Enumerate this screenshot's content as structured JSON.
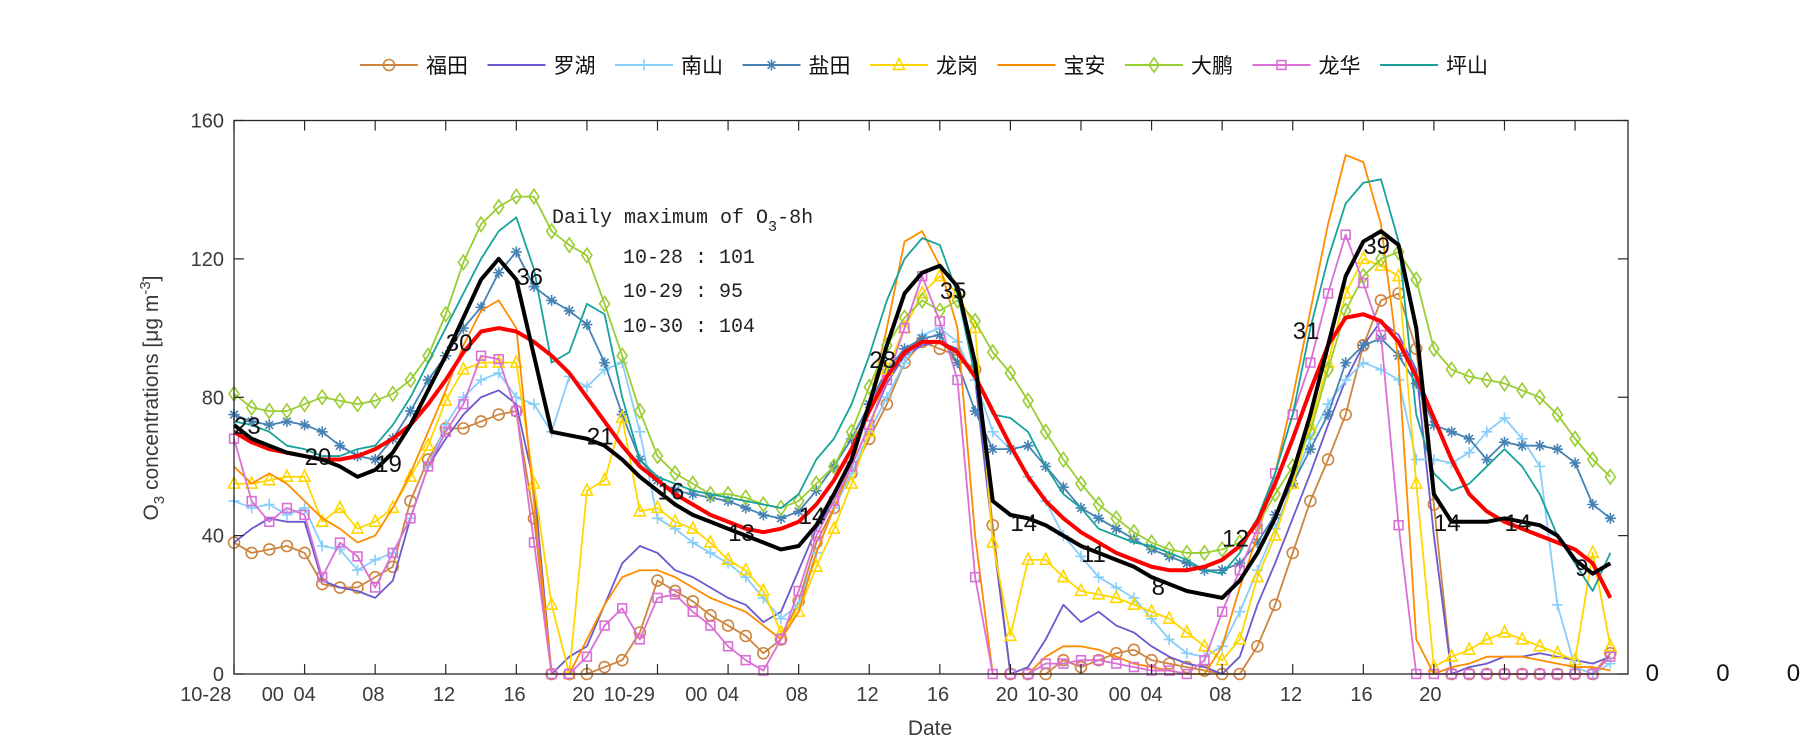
{
  "chart_data": {
    "type": "line",
    "title": "",
    "xlabel": "Date",
    "ylabel": {
      "main": "O",
      "sub": "3",
      "rest": " concentrations [μg m",
      "sup": "-3",
      "end": "]"
    },
    "xlim": [
      0,
      79
    ],
    "ylim": [
      0,
      160
    ],
    "grid": false,
    "legend_position": "top",
    "yticks": [
      0,
      40,
      80,
      120,
      160
    ],
    "xticks": [
      0,
      4,
      8,
      12,
      16,
      20,
      24,
      28,
      32,
      36,
      40,
      44,
      48,
      52,
      56,
      60,
      64,
      68,
      72,
      76
    ],
    "xtick_labels": [
      {
        "text": "10-28",
        "x": -1.6
      },
      {
        "text": "00",
        "x": 2.2
      },
      {
        "text": "04",
        "x": 4
      },
      {
        "text": "08",
        "x": 7.9
      },
      {
        "text": "12",
        "x": 11.9
      },
      {
        "text": "16",
        "x": 15.9
      },
      {
        "text": "20",
        "x": 19.8
      },
      {
        "text": "10-29",
        "x": 22.4
      },
      {
        "text": "00",
        "x": 26.2
      },
      {
        "text": "04",
        "x": 28
      },
      {
        "text": "08",
        "x": 31.9
      },
      {
        "text": "12",
        "x": 35.9
      },
      {
        "text": "16",
        "x": 39.9
      },
      {
        "text": "20",
        "x": 43.8
      },
      {
        "text": "10-30",
        "x": 46.4
      },
      {
        "text": "00",
        "x": 50.2
      },
      {
        "text": "04",
        "x": 52
      },
      {
        "text": "08",
        "x": 55.9
      },
      {
        "text": "12",
        "x": 59.9
      },
      {
        "text": "16",
        "x": 63.9
      },
      {
        "text": "20",
        "x": 67.8
      }
    ],
    "series": [
      {
        "name": "福田",
        "color": "#cd853f",
        "marker": "circle",
        "values": [
          38,
          35,
          36,
          37,
          35,
          26,
          25,
          25,
          28,
          31,
          50,
          62,
          71,
          71,
          73,
          75,
          76,
          45,
          0,
          0,
          0,
          2,
          4,
          12,
          27,
          24,
          21,
          17,
          14,
          11,
          6,
          10,
          21,
          38,
          48,
          58,
          68,
          78,
          90,
          96,
          94,
          92,
          88,
          43,
          0,
          0,
          0,
          4,
          2,
          4,
          6,
          7,
          4,
          3,
          2,
          1,
          0,
          0,
          8,
          20,
          35,
          50,
          62,
          75,
          95,
          108,
          110,
          94,
          49,
          0,
          0,
          0,
          0,
          0,
          0,
          0,
          0,
          0,
          6
        ]
      },
      {
        "name": "罗湖",
        "color": "#6a5acd",
        "marker": "none",
        "values": [
          38,
          42,
          45,
          44,
          44,
          27,
          25,
          24,
          22,
          27,
          45,
          60,
          68,
          75,
          80,
          82,
          78,
          55,
          0,
          5,
          8,
          20,
          32,
          37,
          35,
          30,
          28,
          25,
          22,
          20,
          15,
          18,
          30,
          42,
          50,
          60,
          72,
          84,
          92,
          95,
          96,
          94,
          85,
          40,
          0,
          2,
          10,
          20,
          15,
          18,
          14,
          12,
          8,
          5,
          3,
          2,
          0,
          5,
          20,
          32,
          45,
          58,
          72,
          85,
          95,
          102,
          98,
          88,
          40,
          0,
          2,
          3,
          5,
          5,
          6,
          5,
          4,
          3,
          5
        ]
      },
      {
        "name": "南山",
        "color": "#87cefa",
        "marker": "plus",
        "values": [
          50,
          48,
          49,
          46,
          48,
          37,
          36,
          30,
          33,
          35,
          45,
          60,
          72,
          80,
          85,
          87,
          80,
          78,
          70,
          86,
          83,
          88,
          90,
          70,
          45,
          42,
          38,
          35,
          32,
          28,
          22,
          16,
          20,
          35,
          48,
          58,
          70,
          80,
          90,
          98,
          100,
          96,
          85,
          70,
          65,
          57,
          50,
          40,
          34,
          28,
          25,
          22,
          16,
          10,
          6,
          5,
          8,
          18,
          30,
          42,
          55,
          68,
          78,
          85,
          90,
          88,
          85,
          62,
          62,
          61,
          64,
          70,
          74,
          68,
          60,
          20,
          2,
          0,
          3
        ]
      },
      {
        "name": "盐田",
        "color": "#4682b4",
        "marker": "asterisk",
        "values": [
          75,
          73,
          72,
          73,
          72,
          70,
          66,
          63,
          62,
          68,
          76,
          85,
          92,
          100,
          106,
          116,
          122,
          112,
          108,
          105,
          101,
          90,
          75,
          62,
          56,
          53,
          52,
          51,
          50,
          48,
          46,
          45,
          47,
          53,
          60,
          68,
          78,
          88,
          94,
          97,
          98,
          90,
          76,
          65,
          65,
          66,
          60,
          54,
          48,
          45,
          42,
          39,
          36,
          34,
          32,
          30,
          30,
          32,
          38,
          46,
          55,
          65,
          75,
          90,
          95,
          97,
          92,
          84,
          72,
          70,
          68,
          62,
          67,
          66,
          66,
          65,
          61,
          49,
          45
        ]
      },
      {
        "name": "龙岗",
        "color": "#ffd700",
        "marker": "triangle",
        "values": [
          55,
          55,
          56,
          57,
          57,
          44,
          48,
          42,
          44,
          48,
          57,
          66,
          79,
          88,
          90,
          90,
          90,
          55,
          20,
          0,
          53,
          56,
          74,
          47,
          48,
          44,
          42,
          38,
          33,
          30,
          24,
          12,
          18,
          31,
          42,
          55,
          70,
          88,
          100,
          110,
          115,
          110,
          100,
          38,
          11,
          33,
          33,
          28,
          24,
          23,
          22,
          20,
          18,
          16,
          12,
          8,
          4,
          10,
          28,
          40,
          55,
          72,
          90,
          110,
          120,
          118,
          115,
          55,
          2,
          5,
          7,
          10,
          12,
          10,
          8,
          6,
          4,
          35,
          8
        ]
      },
      {
        "name": "宝安",
        "color": "#ff8c00",
        "marker": "none",
        "values": [
          60,
          55,
          58,
          55,
          50,
          45,
          42,
          38,
          40,
          48,
          58,
          70,
          82,
          95,
          105,
          108,
          100,
          50,
          0,
          0,
          10,
          20,
          28,
          30,
          30,
          28,
          25,
          22,
          20,
          18,
          14,
          10,
          18,
          35,
          48,
          60,
          78,
          100,
          125,
          128,
          118,
          100,
          40,
          0,
          0,
          0,
          5,
          8,
          8,
          7,
          5,
          3,
          2,
          1,
          0,
          0,
          8,
          25,
          40,
          58,
          80,
          105,
          130,
          150,
          148,
          130,
          90,
          10,
          0,
          2,
          3,
          5,
          5,
          5,
          4,
          3,
          2,
          2,
          1
        ]
      },
      {
        "name": "大鹏",
        "color": "#9acd32",
        "marker": "diamond",
        "values": [
          81,
          77,
          76,
          76,
          78,
          80,
          79,
          78,
          79,
          81,
          85,
          92,
          104,
          119,
          130,
          135,
          138,
          138,
          128,
          124,
          121,
          107,
          92,
          76,
          63,
          58,
          55,
          52,
          52,
          51,
          49,
          48,
          50,
          55,
          60,
          70,
          83,
          95,
          103,
          108,
          105,
          108,
          102,
          93,
          87,
          79,
          70,
          62,
          55,
          49,
          45,
          41,
          38,
          36,
          35,
          35,
          36,
          38,
          43,
          52,
          60,
          70,
          88,
          105,
          115,
          120,
          122,
          114,
          94,
          88,
          86,
          85,
          84,
          82,
          80,
          75,
          68,
          62,
          57
        ]
      },
      {
        "name": "龙华",
        "color": "#da70d6",
        "marker": "square",
        "values": [
          68,
          50,
          44,
          48,
          46,
          28,
          38,
          34,
          25,
          35,
          45,
          60,
          70,
          78,
          92,
          91,
          76,
          38,
          0,
          0,
          5,
          14,
          19,
          10,
          22,
          23,
          18,
          14,
          8,
          4,
          1,
          10,
          24,
          40,
          50,
          60,
          72,
          85,
          100,
          115,
          102,
          85,
          28,
          0,
          0,
          0,
          3,
          3,
          4,
          4,
          3,
          2,
          1,
          1,
          0,
          4,
          18,
          30,
          42,
          58,
          75,
          90,
          110,
          127,
          113,
          98,
          43,
          0,
          0,
          0,
          0,
          0,
          0,
          0,
          0,
          0,
          0,
          0,
          5
        ]
      },
      {
        "name": "坪山",
        "color": "#17a39b",
        "marker": "none",
        "values": [
          73,
          72,
          70,
          66,
          65,
          63,
          63,
          65,
          66,
          72,
          80,
          90,
          100,
          110,
          120,
          128,
          132,
          117,
          90,
          93,
          107,
          104,
          80,
          62,
          57,
          55,
          53,
          52,
          51,
          50,
          49,
          48,
          52,
          62,
          68,
          78,
          92,
          108,
          120,
          126,
          124,
          110,
          86,
          75,
          74,
          70,
          60,
          52,
          48,
          42,
          40,
          38,
          37,
          35,
          33,
          30,
          29,
          35,
          45,
          58,
          75,
          100,
          120,
          136,
          142,
          143,
          125,
          75,
          58,
          53,
          55,
          60,
          65,
          60,
          52,
          40,
          32,
          24,
          35
        ]
      }
    ],
    "overlay_lines": [
      {
        "color": "#ff0000",
        "values": [
          70,
          67,
          65,
          64,
          63,
          62,
          62,
          63,
          65,
          68,
          72,
          78,
          85,
          93,
          99,
          100,
          99,
          96,
          92,
          87,
          80,
          73,
          66,
          60,
          56,
          52,
          49,
          46,
          44,
          42,
          41,
          42,
          44,
          49,
          56,
          65,
          76,
          86,
          93,
          96,
          96,
          93,
          86,
          76,
          66,
          57,
          50,
          45,
          41,
          38,
          35,
          33,
          31,
          30,
          30,
          31,
          33,
          37,
          44,
          55,
          68,
          82,
          95,
          103,
          104,
          102,
          96,
          86,
          74,
          62,
          52,
          47,
          44,
          42,
          40,
          38,
          36,
          32,
          22
        ]
      },
      {
        "color": "#000000",
        "values": [
          72,
          68,
          66,
          64,
          63,
          62,
          60,
          57,
          59,
          64,
          72,
          82,
          92,
          103,
          114,
          120,
          114,
          92,
          70,
          69,
          68,
          66,
          62,
          57,
          53,
          49,
          46,
          44,
          42,
          40,
          38,
          36,
          37,
          43,
          52,
          62,
          78,
          95,
          110,
          116,
          118,
          112,
          90,
          50,
          46,
          45,
          43,
          40,
          37,
          35,
          33,
          31,
          28,
          26,
          24,
          23,
          22,
          27,
          35,
          45,
          58,
          75,
          95,
          115,
          125,
          128,
          124,
          100,
          52,
          44,
          44,
          44,
          45,
          44,
          43,
          40,
          33,
          29,
          32
        ]
      }
    ],
    "annotations": [
      {
        "x": 0,
        "y": 72,
        "text": "23"
      },
      {
        "x": 4,
        "y": 63,
        "text": "20"
      },
      {
        "x": 8,
        "y": 61,
        "text": "19"
      },
      {
        "x": 12,
        "y": 96,
        "text": "30"
      },
      {
        "x": 16,
        "y": 115,
        "text": "36"
      },
      {
        "x": 20,
        "y": 69,
        "text": "21"
      },
      {
        "x": 24,
        "y": 53,
        "text": "16"
      },
      {
        "x": 28,
        "y": 41,
        "text": "13"
      },
      {
        "x": 32,
        "y": 46,
        "text": "14"
      },
      {
        "x": 36,
        "y": 91,
        "text": "28"
      },
      {
        "x": 40,
        "y": 111,
        "text": "35"
      },
      {
        "x": 44,
        "y": 44,
        "text": "14"
      },
      {
        "x": 48,
        "y": 35,
        "text": "11"
      },
      {
        "x": 52,
        "y": 25.5,
        "text": "8"
      },
      {
        "x": 56,
        "y": 39.5,
        "text": "12"
      },
      {
        "x": 60,
        "y": 99.5,
        "text": "31"
      },
      {
        "x": 64,
        "y": 124,
        "text": "39"
      },
      {
        "x": 68,
        "y": 44,
        "text": "14"
      },
      {
        "x": 72,
        "y": 44,
        "text": "14"
      },
      {
        "x": 76,
        "y": 31,
        "text": "9"
      },
      {
        "x": 80,
        "y": 0.6,
        "text": "0"
      },
      {
        "x": 84,
        "y": 0.6,
        "text": "0"
      },
      {
        "x": 88,
        "y": 0.6,
        "text": "0"
      }
    ],
    "daily_max_box": {
      "title_main": "Daily maximum of O",
      "title_sub": "3",
      "title_end": "-8h",
      "lines": [
        "10-28 : 101",
        "10-29 : 95",
        "10-30 : 104"
      ]
    }
  }
}
